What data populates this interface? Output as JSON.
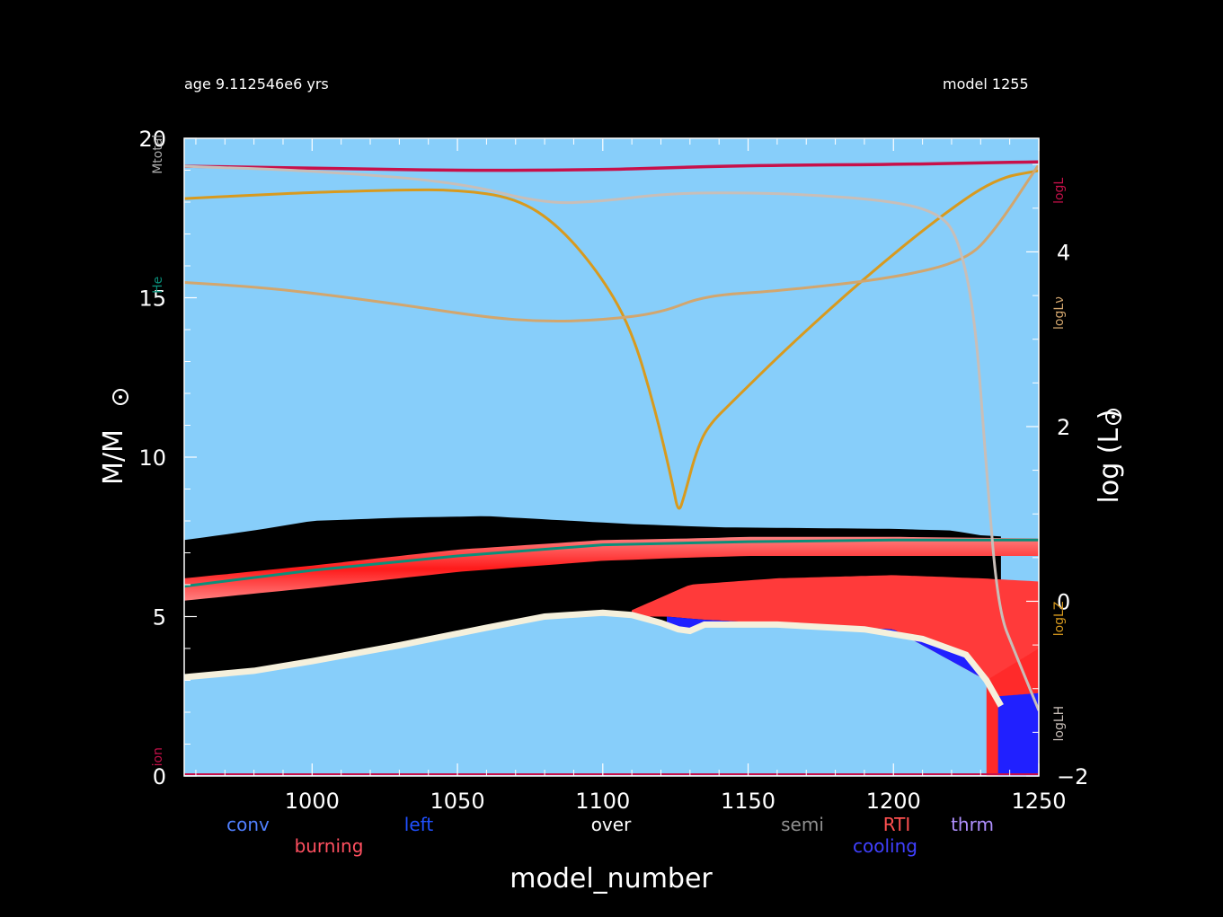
{
  "header": {
    "age": "age 9.112546e6 yrs",
    "model": "model 1255"
  },
  "colors": {
    "background": "#000000",
    "envelope": "#87cefa",
    "radiative": "#000000",
    "burning_dark": "#ff1a1a",
    "burning_light": "#ff8080",
    "cooling": "#2020ff",
    "overshoot_shell": "#f5f0dc",
    "log_L": "#c8104a",
    "log_Lnu": "#d89a1e",
    "log_Lz": "#d2a66e",
    "log_LH": "#c8beb8",
    "he_core": "#0a8f7a"
  },
  "legend": {
    "row1": [
      {
        "label": "conv",
        "color": "#5080ff"
      },
      {
        "label": "left",
        "color": "#2050ff"
      },
      {
        "label": "over",
        "color": "#ffffff"
      },
      {
        "label": "semi",
        "color": "#909090"
      },
      {
        "label": "RTI",
        "color": "#ff5050"
      },
      {
        "label": "thrm",
        "color": "#b090ff"
      }
    ],
    "row2": [
      {
        "label": "burning",
        "color": "#ff5060"
      },
      {
        "label": "cooling",
        "color": "#4040ff"
      }
    ]
  },
  "chart_data": {
    "type": "line",
    "title": "",
    "xlabel": "model_number",
    "ylabel_left": "M/M",
    "ylabel_right": "log (L )",
    "xlim": [
      956,
      1250
    ],
    "ylim_left": [
      0,
      20
    ],
    "ylim_right": [
      -2,
      5.3
    ],
    "x_ticks": [
      1000,
      1050,
      1100,
      1150,
      1200,
      1250
    ],
    "y_ticks_left": [
      0,
      5,
      10,
      15,
      20
    ],
    "y_ticks_right": [
      -2,
      0,
      2,
      4
    ],
    "left_axis_tags": [
      {
        "label": "Mtotal",
        "y": 19.5,
        "color": "#aaaaaa"
      },
      {
        "label": "He",
        "y": 15.4,
        "color": "#0a8f7a"
      },
      {
        "label": "ion",
        "y": 0.6,
        "color": "#c8104a"
      }
    ],
    "right_axis_tags": [
      {
        "label": "logL",
        "y": 4.7,
        "color": "#c8104a"
      },
      {
        "label": "logLν",
        "y": 3.3,
        "color": "#d2a66e"
      },
      {
        "label": "logLZ",
        "y": -0.2,
        "color": "#d89a1e"
      },
      {
        "label": "logLH",
        "y": -1.4,
        "color": "#c8beb8"
      }
    ],
    "series": [
      {
        "name": "logL",
        "axis": "right",
        "x": [
          956,
          1000,
          1050,
          1100,
          1120,
          1150,
          1200,
          1230,
          1250
        ],
        "y": [
          4.98,
          4.96,
          4.93,
          4.94,
          4.96,
          4.99,
          5.0,
          5.02,
          5.03
        ]
      },
      {
        "name": "logLZ",
        "axis": "right",
        "x": [
          956,
          980,
          1000,
          1030,
          1050,
          1070,
          1085,
          1100,
          1110,
          1118,
          1124,
          1126,
          1128,
          1132,
          1136,
          1145,
          1165,
          1190,
          1215,
          1235,
          1250
        ],
        "y": [
          4.61,
          4.65,
          4.68,
          4.71,
          4.71,
          4.62,
          4.3,
          3.7,
          3.1,
          2.2,
          1.35,
          1.0,
          1.2,
          1.7,
          2.0,
          2.3,
          2.95,
          3.7,
          4.38,
          4.84,
          4.93
        ]
      },
      {
        "name": "logLν",
        "axis": "right",
        "x": [
          956,
          980,
          1000,
          1030,
          1060,
          1080,
          1100,
          1120,
          1135,
          1160,
          1200,
          1225,
          1235,
          1250
        ],
        "y": [
          3.65,
          3.6,
          3.53,
          3.4,
          3.25,
          3.2,
          3.22,
          3.3,
          3.5,
          3.55,
          3.7,
          3.9,
          4.25,
          5.0
        ]
      },
      {
        "name": "logLH",
        "axis": "right",
        "x": [
          956,
          1000,
          1050,
          1080,
          1100,
          1120,
          1140,
          1170,
          1200,
          1215,
          1222,
          1228,
          1232,
          1236,
          1242,
          1250
        ],
        "y": [
          4.98,
          4.93,
          4.8,
          4.55,
          4.58,
          4.66,
          4.68,
          4.66,
          4.58,
          4.45,
          4.2,
          3.3,
          1.5,
          -0.1,
          -0.6,
          -1.25
        ]
      }
    ],
    "boundaries": {
      "convective_top": {
        "x": [
          956,
          980,
          1000,
          1030,
          1060,
          1090,
          1110,
          1140,
          1200,
          1220,
          1230,
          1250
        ],
        "y": [
          7.4,
          7.7,
          8.0,
          8.1,
          8.15,
          8.0,
          7.9,
          7.8,
          7.75,
          7.7,
          7.55,
          7.45
        ]
      },
      "burning_top": {
        "x": [
          956,
          1000,
          1050,
          1100,
          1130,
          1150,
          1200,
          1250
        ],
        "y": [
          6.2,
          6.6,
          7.1,
          7.4,
          7.45,
          7.5,
          7.5,
          7.45
        ]
      },
      "burning_bottom": {
        "x": [
          956,
          1000,
          1050,
          1100,
          1130,
          1150,
          1200,
          1250
        ],
        "y": [
          5.5,
          5.9,
          6.4,
          6.75,
          6.85,
          6.9,
          6.9,
          6.9
        ]
      },
      "he_core_mass": {
        "x": [
          956,
          1000,
          1050,
          1100,
          1150,
          1200,
          1250
        ],
        "y": [
          5.95,
          6.45,
          6.9,
          7.25,
          7.35,
          7.4,
          7.4
        ]
      },
      "core_shell": {
        "x": [
          956,
          980,
          1000,
          1030,
          1060,
          1080,
          1100,
          1110,
          1120,
          1126,
          1130,
          1135,
          1160,
          1190,
          1210,
          1225,
          1232,
          1237
        ],
        "y": [
          3.1,
          3.3,
          3.6,
          4.1,
          4.65,
          5.0,
          5.12,
          5.05,
          4.8,
          4.6,
          4.55,
          4.75,
          4.75,
          4.6,
          4.3,
          3.8,
          3.0,
          2.2
        ]
      },
      "shell_burning_top": {
        "x": [
          1110,
          1130,
          1160,
          1200,
          1230,
          1250
        ],
        "y": [
          5.2,
          6.0,
          6.2,
          6.3,
          6.2,
          6.1
        ]
      },
      "cooling_top": {
        "x": [
          1122,
          1135,
          1200,
          1232,
          1240,
          1250
        ],
        "y": [
          5.0,
          4.9,
          4.6,
          3.0,
          2.7,
          2.7
        ]
      }
    }
  }
}
